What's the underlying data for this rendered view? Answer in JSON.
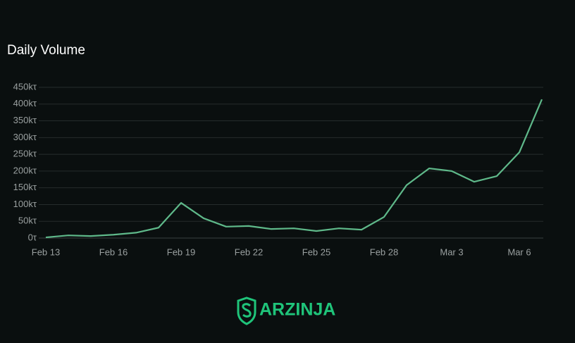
{
  "chart_data": {
    "type": "line",
    "title": "Daily Volume",
    "categories": [
      "Feb 13",
      null,
      null,
      "Feb 16",
      null,
      null,
      "Feb 19",
      null,
      null,
      "Feb 22",
      null,
      null,
      "Feb 25",
      null,
      null,
      "Feb 28",
      null,
      null,
      "Mar 3",
      null,
      null,
      "Mar 6",
      null
    ],
    "values": [
      2,
      8,
      6,
      10,
      16,
      31,
      105,
      59,
      34,
      36,
      27,
      29,
      21,
      29,
      25,
      63,
      158,
      208,
      200,
      168,
      185,
      256,
      414
    ],
    "color": "#5fb98a",
    "ylim": [
      0,
      450
    ],
    "yticks": [
      {
        "value": 0,
        "label": "0τ"
      },
      {
        "value": 50,
        "label": "50kτ"
      },
      {
        "value": 100,
        "label": "100kτ"
      },
      {
        "value": 150,
        "label": "150kτ"
      },
      {
        "value": 200,
        "label": "200kτ"
      },
      {
        "value": 250,
        "label": "250kτ"
      },
      {
        "value": 300,
        "label": "300kτ"
      },
      {
        "value": 350,
        "label": "350kτ"
      },
      {
        "value": 400,
        "label": "400kτ"
      },
      {
        "value": 450,
        "label": "450kτ"
      }
    ],
    "grid": true
  },
  "logo_text": "ARZINJA"
}
